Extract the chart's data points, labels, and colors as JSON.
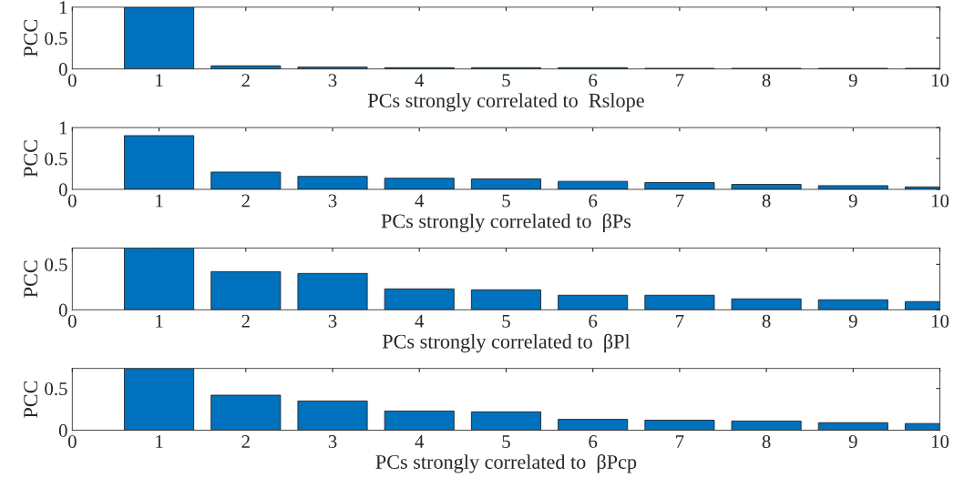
{
  "chart_data": [
    {
      "type": "bar",
      "xlabel": "PCs strongly correlated to  Rslope",
      "ylabel": "PCC",
      "x": [
        1,
        2,
        3,
        4,
        5,
        6,
        7,
        8,
        9,
        10
      ],
      "values": [
        1,
        0.05,
        0.03,
        0.02,
        0.02,
        0.02,
        0.01,
        0.01,
        0.01,
        0.01
      ],
      "color": "#0072bd",
      "xlim": [
        0,
        10
      ],
      "xticks": [
        0,
        1,
        2,
        3,
        4,
        5,
        6,
        7,
        8,
        9,
        10
      ],
      "ylim": [
        0,
        1
      ],
      "yticks": [
        0,
        0.5,
        1
      ],
      "grid": false,
      "legend": false
    },
    {
      "type": "bar",
      "xlabel": "PCs strongly correlated to  βPs",
      "ylabel": "PCC",
      "x": [
        1,
        2,
        3,
        4,
        5,
        6,
        7,
        8,
        9,
        10
      ],
      "values": [
        0.87,
        0.28,
        0.21,
        0.18,
        0.17,
        0.13,
        0.11,
        0.08,
        0.06,
        0.04
      ],
      "color": "#0072bd",
      "xlim": [
        0,
        10
      ],
      "xticks": [
        0,
        1,
        2,
        3,
        4,
        5,
        6,
        7,
        8,
        9,
        10
      ],
      "ylim": [
        0,
        1
      ],
      "yticks": [
        0,
        0.5,
        1
      ],
      "grid": false,
      "legend": false
    },
    {
      "type": "bar",
      "xlabel": "PCs strongly correlated to  βPl",
      "ylabel": "PCC",
      "x": [
        1,
        2,
        3,
        4,
        5,
        6,
        7,
        8,
        9,
        10
      ],
      "values": [
        0.68,
        0.42,
        0.4,
        0.23,
        0.22,
        0.16,
        0.16,
        0.12,
        0.11,
        0.09
      ],
      "color": "#0072bd",
      "xlim": [
        0,
        10
      ],
      "xticks": [
        0,
        1,
        2,
        3,
        4,
        5,
        6,
        7,
        8,
        9,
        10
      ],
      "ylim": [
        0,
        0.68
      ],
      "yticks": [
        0,
        0.5
      ],
      "grid": false,
      "legend": false
    },
    {
      "type": "bar",
      "xlabel": "PCs strongly correlated to  βPcp",
      "ylabel": "PCC",
      "x": [
        1,
        2,
        3,
        4,
        5,
        6,
        7,
        8,
        9,
        10
      ],
      "values": [
        0.74,
        0.42,
        0.35,
        0.23,
        0.22,
        0.13,
        0.12,
        0.11,
        0.09,
        0.08
      ],
      "color": "#0072bd",
      "xlim": [
        0,
        10
      ],
      "xticks": [
        0,
        1,
        2,
        3,
        4,
        5,
        6,
        7,
        8,
        9,
        10
      ],
      "ylim": [
        0,
        0.74
      ],
      "yticks": [
        0,
        0.5
      ],
      "grid": false,
      "legend": false
    }
  ]
}
